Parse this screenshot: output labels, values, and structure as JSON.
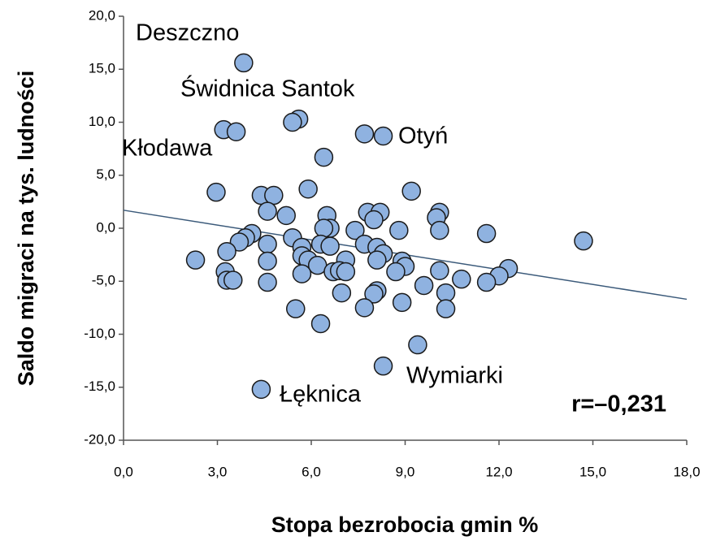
{
  "chart_data": {
    "type": "scatter",
    "x_label": "Stopa bezrobocia gmin  %",
    "y_label": "Saldo migraci na  tys. ludności",
    "x": [
      3.84,
      5.6,
      5.4,
      3.2,
      3.6,
      7.7,
      8.3,
      6.4,
      2.96,
      4.4,
      4.8,
      5.9,
      9.2,
      4.6,
      5.2,
      6.5,
      7.8,
      8.2,
      8.0,
      10.1,
      10.0,
      6.6,
      6.4,
      7.4,
      8.8,
      10.1,
      11.6,
      14.7,
      4.1,
      3.9,
      3.7,
      5.4,
      4.6,
      3.3,
      2.3,
      5.7,
      5.7,
      6.3,
      6.6,
      7.7,
      8.1,
      8.3,
      8.1,
      4.6,
      5.9,
      6.2,
      7.1,
      8.9,
      9.0,
      8.7,
      3.25,
      3.3,
      3.5,
      5.7,
      6.7,
      6.9,
      7.1,
      10.1,
      12.3,
      12.0,
      10.8,
      10.3,
      11.6,
      9.6,
      4.6,
      6.97,
      8.1,
      8.0,
      8.9,
      7.7,
      5.5,
      10.3,
      6.3,
      9.4,
      8.3,
      4.4
    ],
    "values": [
      15.6,
      10.3,
      10.0,
      9.3,
      9.1,
      8.9,
      8.7,
      6.7,
      3.4,
      3.1,
      3.1,
      3.7,
      3.5,
      1.6,
      1.2,
      1.2,
      1.5,
      1.5,
      0.8,
      1.5,
      1.0,
      0.0,
      0.0,
      -0.2,
      -0.2,
      -0.2,
      -0.5,
      -1.2,
      -0.5,
      -0.9,
      -1.3,
      -0.9,
      -1.5,
      -2.2,
      -3.0,
      -1.8,
      -2.6,
      -1.5,
      -1.7,
      -1.5,
      -1.8,
      -2.4,
      -3.0,
      -3.1,
      -3.0,
      -3.5,
      -3.0,
      -3.1,
      -3.6,
      -4.1,
      -4.1,
      -4.9,
      -4.9,
      -4.3,
      -4.1,
      -4.0,
      -4.1,
      -4.0,
      -3.8,
      -4.5,
      -4.8,
      -6.1,
      -5.1,
      -5.4,
      -5.1,
      -6.1,
      -5.9,
      -6.2,
      -7.0,
      -7.5,
      -7.6,
      -7.6,
      -9.0,
      -11.0,
      -13.0,
      -15.2
    ],
    "color": "#8fb2e0",
    "trend_line": {
      "x": [
        0,
        18
      ],
      "values": [
        1.7,
        -6.7
      ],
      "color": "#3b5a7a"
    },
    "annotations": [
      "Deszczno",
      "Świdnica Santok",
      "Kłodawa",
      "Otyń",
      "Wymiarki",
      "Łęknica",
      "r=–0,231"
    ],
    "xlim": [
      0,
      18
    ],
    "ylim": [
      -20,
      20
    ],
    "xticks": [
      {
        "value": 0,
        "label": "0,0"
      },
      {
        "value": 3,
        "label": "3,0"
      },
      {
        "value": 6,
        "label": "6,0"
      },
      {
        "value": 9,
        "label": "9,0"
      },
      {
        "value": 12,
        "label": "12,0"
      },
      {
        "value": 15,
        "label": "15,0"
      },
      {
        "value": 18,
        "label": "18,0"
      }
    ],
    "yticks": [
      {
        "value": -20,
        "label": "-20,0"
      },
      {
        "value": -15,
        "label": "-15,0"
      },
      {
        "value": -10,
        "label": "-10,0"
      },
      {
        "value": -5,
        "label": "-5,0"
      },
      {
        "value": 0,
        "label": "0,0"
      },
      {
        "value": 5,
        "label": "5,0"
      },
      {
        "value": 10,
        "label": "10,0"
      },
      {
        "value": 15,
        "label": "15,0"
      },
      {
        "value": 20,
        "label": "20,0"
      }
    ]
  }
}
